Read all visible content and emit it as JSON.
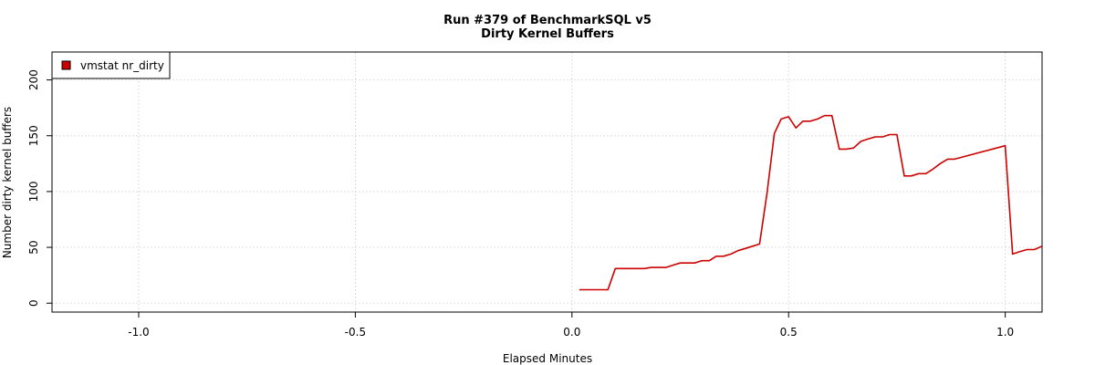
{
  "chart_data": {
    "type": "line",
    "title": "Run #379 of BenchmarkSQL v5",
    "subtitle": "Dirty Kernel Buffers",
    "xlabel": "Elapsed Minutes",
    "ylabel": "Number dirty kernel buffers",
    "xlim": [
      -1.2,
      1.085
    ],
    "ylim": [
      -8,
      225
    ],
    "xticks": [
      -1.0,
      -0.5,
      0.0,
      0.5,
      1.0
    ],
    "xtick_labels": [
      "-1.0",
      "-0.5",
      "0.0",
      "0.5",
      "1.0"
    ],
    "yticks": [
      0,
      50,
      100,
      150,
      200
    ],
    "ytick_labels": [
      "0",
      "50",
      "100",
      "150",
      "200"
    ],
    "grid": true,
    "legend": {
      "position": "top-left",
      "entries": [
        {
          "label": "vmstat nr_dirty",
          "color": "#cc0000"
        }
      ]
    },
    "series": [
      {
        "name": "vmstat nr_dirty",
        "color": "#cc0000",
        "x": [
          0.017,
          0.033,
          0.05,
          0.067,
          0.083,
          0.1,
          0.117,
          0.133,
          0.15,
          0.167,
          0.183,
          0.2,
          0.217,
          0.233,
          0.25,
          0.267,
          0.283,
          0.3,
          0.317,
          0.333,
          0.35,
          0.367,
          0.383,
          0.4,
          0.417,
          0.433,
          0.45,
          0.467,
          0.483,
          0.5,
          0.517,
          0.533,
          0.55,
          0.567,
          0.583,
          0.6,
          0.617,
          0.633,
          0.65,
          0.667,
          0.683,
          0.7,
          0.717,
          0.733,
          0.75,
          0.767,
          0.783,
          0.8,
          0.817,
          0.833,
          0.85,
          0.867,
          0.883,
          1.0,
          1.017,
          1.033,
          1.05,
          1.067,
          1.085
        ],
        "y": [
          12,
          12,
          12,
          12,
          12,
          31,
          31,
          31,
          31,
          31,
          32,
          32,
          32,
          34,
          36,
          36,
          36,
          38,
          38,
          42,
          42,
          44,
          47,
          49,
          51,
          53,
          98,
          152,
          165,
          167,
          157,
          163,
          163,
          165,
          168,
          168,
          138,
          138,
          139,
          145,
          147,
          149,
          149,
          151,
          151,
          114,
          114,
          116,
          116,
          120,
          125,
          129,
          129,
          141,
          44,
          46,
          48,
          48,
          51
        ]
      }
    ]
  }
}
